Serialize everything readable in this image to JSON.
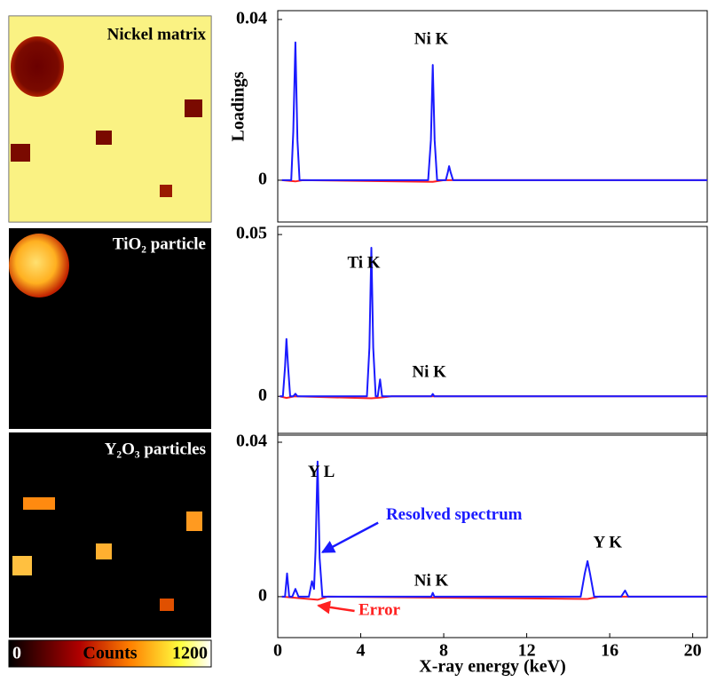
{
  "maps": [
    {
      "label": "Nickel matrix"
    },
    {
      "label": "TiO₂ particle"
    },
    {
      "label": "Y₂O₃ particles"
    }
  ],
  "colorbar": {
    "label": "Counts",
    "range": [
      0,
      1200
    ],
    "ticks": [
      0,
      1200
    ]
  },
  "chart_data": [
    {
      "type": "line",
      "y_label": "Loadings",
      "xlim": [
        0,
        20.7
      ],
      "ylim": [
        -0.0104,
        0.0422
      ],
      "yticks": [
        0,
        0.04
      ],
      "series": [
        {
          "color": "#1a1aff",
          "x": [
            0.2,
            0.65,
            0.75,
            0.85,
            0.95,
            1.05,
            7.25,
            7.38,
            7.47,
            7.56,
            7.68,
            8.1,
            8.2,
            8.26,
            8.33,
            8.45,
            20.7
          ],
          "values": [
            0,
            0,
            0.012,
            0.0343,
            0.01,
            0,
            0,
            0.01,
            0.0287,
            0.01,
            0,
            0,
            0.002,
            0.0035,
            0.002,
            0,
            0
          ]
        },
        {
          "color": "#ff2020",
          "x": [
            0.2,
            0.85,
            1.2,
            7.47,
            8,
            20.7
          ],
          "values": [
            0,
            -0.0003,
            0,
            -0.0004,
            0,
            0
          ]
        }
      ],
      "annotations": [
        {
          "text": "Ni K",
          "x": 7.4,
          "y": 0.0349,
          "color": "#000000"
        }
      ]
    },
    {
      "type": "line",
      "xlim": [
        0,
        20.7
      ],
      "ylim": [
        -0.012,
        0.0525
      ],
      "yticks": [
        0,
        0.05
      ],
      "series": [
        {
          "color": "#1a1aff",
          "x": [
            0.1,
            0.25,
            0.35,
            0.42,
            0.5,
            0.6,
            0.75,
            0.85,
            0.95,
            4.3,
            4.42,
            4.51,
            4.6,
            4.72,
            4.82,
            4.93,
            5.03,
            5.15,
            7.4,
            7.47,
            7.55,
            20.7
          ],
          "values": [
            0,
            0,
            0.009,
            0.0177,
            0.009,
            0,
            0,
            0.0008,
            0,
            0,
            0.015,
            0.0459,
            0.015,
            0,
            0,
            0.0052,
            0,
            0,
            0,
            0.0007,
            0,
            0
          ]
        },
        {
          "color": "#ff2020",
          "x": [
            0.1,
            0.42,
            0.8,
            4.51,
            4.93,
            5.5,
            20.7
          ],
          "values": [
            0,
            -0.0005,
            0,
            -0.0006,
            -0.0004,
            0,
            0
          ]
        }
      ],
      "annotations": [
        {
          "text": "Ti K",
          "x": 4.15,
          "y": 0.0409,
          "color": "#000000"
        },
        {
          "text": "Ni K",
          "x": 7.3,
          "y": 0.0072,
          "color": "#000000"
        }
      ]
    },
    {
      "type": "line",
      "x_label": "X-ray energy (keV)",
      "xlim": [
        0,
        20.7
      ],
      "ylim": [
        -0.0106,
        0.0423
      ],
      "yticks": [
        0,
        0.04
      ],
      "xticks": [
        0,
        4,
        8,
        12,
        16,
        20
      ],
      "series": [
        {
          "color": "#1a1aff",
          "x": [
            0.2,
            0.35,
            0.45,
            0.55,
            0.7,
            0.85,
            1.0,
            1.5,
            1.65,
            1.75,
            1.82,
            1.92,
            2.02,
            2.15,
            7.4,
            7.47,
            7.55,
            14.6,
            14.8,
            14.93,
            15.05,
            15.25,
            16.55,
            16.74,
            16.9,
            20.7
          ],
          "values": [
            0,
            0,
            0.006,
            0,
            0,
            0.002,
            0,
            0,
            0.004,
            0.002,
            0.012,
            0.035,
            0.01,
            0,
            0,
            0.001,
            0,
            0,
            0.006,
            0.0092,
            0.006,
            0,
            0,
            0.0016,
            0,
            0
          ]
        },
        {
          "color": "#ff2020",
          "x": [
            0.2,
            1.92,
            2.4,
            14.93,
            15.5,
            20.7
          ],
          "values": [
            0,
            -0.0008,
            0,
            -0.0006,
            0,
            0
          ]
        }
      ],
      "annotations": [
        {
          "text": "Y L",
          "x": 2.1,
          "y": 0.032,
          "color": "#000000"
        },
        {
          "text": "Resolved spectrum",
          "x": 8.5,
          "y": 0.021,
          "color": "#1a1aff",
          "arrow_x": 2.15,
          "arrow_y": 0.0115
        },
        {
          "text": "Error",
          "x": 4.9,
          "y": -0.0037,
          "color": "#ff2020",
          "arrow_x": 1.95,
          "arrow_y": -0.0023
        },
        {
          "text": "Y K",
          "x": 15.9,
          "y": 0.0138,
          "color": "#000000"
        },
        {
          "text": "Ni K",
          "x": 7.4,
          "y": 0.0039,
          "color": "#000000"
        }
      ]
    }
  ]
}
